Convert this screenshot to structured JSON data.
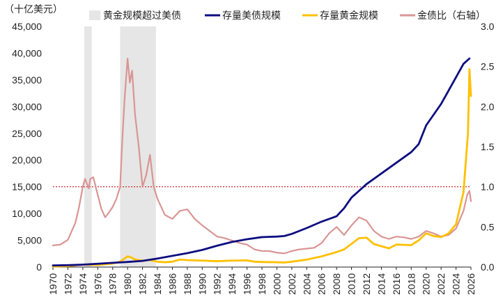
{
  "chart_data": {
    "type": "line",
    "y_left_unit": "（十亿美元）",
    "ylim_left": [
      0,
      45000
    ],
    "ylim_right": [
      0,
      3.0
    ],
    "xlim": [
      1970,
      2026
    ],
    "y_left_ticks": [
      "0",
      "5,000",
      "10,000",
      "15,000",
      "20,000",
      "25,000",
      "30,000",
      "35,000",
      "40,000",
      "45,000"
    ],
    "y_right_ticks": [
      "0.0",
      "0.5",
      "1.0",
      "1.5",
      "2.0",
      "2.5",
      "3.0"
    ],
    "x_ticks": [
      "1970",
      "1972",
      "1974",
      "1976",
      "1978",
      "1980",
      "1982",
      "1984",
      "1986",
      "1988",
      "1990",
      "1992",
      "1994",
      "1996",
      "1998",
      "2000",
      "2002",
      "2004",
      "2006",
      "2008",
      "2010",
      "2012",
      "2014",
      "2016",
      "2018",
      "2020",
      "2022",
      "2024",
      "2026"
    ],
    "reference_line_right": 1.0,
    "legend": {
      "shade_label": "黄金规模超过美债",
      "treasury_label": "存量美债规模",
      "gold_label": "存量黄金规模",
      "ratio_label": "金债比（右轴）"
    },
    "colors": {
      "treasury": "#0d0d80",
      "gold": "#ffc000",
      "ratio": "#d99594",
      "shade": "#e6e6e6",
      "refline": "#c00000"
    },
    "shaded_periods": [
      [
        1974.2,
        1975.2
      ],
      [
        1979.0,
        1983.8
      ]
    ],
    "series": [
      {
        "name": "存量美债规模",
        "axis": "left",
        "points": [
          [
            1970,
            300
          ],
          [
            1972,
            350
          ],
          [
            1974,
            450
          ],
          [
            1976,
            620
          ],
          [
            1978,
            800
          ],
          [
            1980,
            950
          ],
          [
            1982,
            1150
          ],
          [
            1984,
            1600
          ],
          [
            1986,
            2100
          ],
          [
            1988,
            2600
          ],
          [
            1990,
            3200
          ],
          [
            1992,
            4000
          ],
          [
            1994,
            4700
          ],
          [
            1996,
            5200
          ],
          [
            1998,
            5600
          ],
          [
            2000,
            5700
          ],
          [
            2001,
            5800
          ],
          [
            2002,
            6200
          ],
          [
            2004,
            7300
          ],
          [
            2006,
            8500
          ],
          [
            2008,
            9500
          ],
          [
            2009,
            11000
          ],
          [
            2010,
            13000
          ],
          [
            2012,
            15500
          ],
          [
            2014,
            17500
          ],
          [
            2016,
            19500
          ],
          [
            2018,
            21500
          ],
          [
            2019,
            23000
          ],
          [
            2020,
            26500
          ],
          [
            2021,
            28500
          ],
          [
            2022,
            30500
          ],
          [
            2023,
            33000
          ],
          [
            2024,
            35500
          ],
          [
            2025,
            38000
          ],
          [
            2025.8,
            39000
          ]
        ]
      },
      {
        "name": "存量黄金规模",
        "axis": "left",
        "points": [
          [
            1970,
            120
          ],
          [
            1972,
            180
          ],
          [
            1974,
            450
          ],
          [
            1976,
            400
          ],
          [
            1978,
            650
          ],
          [
            1979,
            1000
          ],
          [
            1980,
            2000
          ],
          [
            1980.5,
            1800
          ],
          [
            1981,
            1400
          ],
          [
            1982,
            1200
          ],
          [
            1983,
            1300
          ],
          [
            1984,
            1000
          ],
          [
            1985,
            900
          ],
          [
            1986,
            1000
          ],
          [
            1987,
            1400
          ],
          [
            1988,
            1300
          ],
          [
            1990,
            1200
          ],
          [
            1992,
            1100
          ],
          [
            1994,
            1200
          ],
          [
            1996,
            1250
          ],
          [
            1997,
            1000
          ],
          [
            1998,
            950
          ],
          [
            2000,
            900
          ],
          [
            2001,
            850
          ],
          [
            2002,
            1000
          ],
          [
            2004,
            1400
          ],
          [
            2006,
            2000
          ],
          [
            2008,
            2800
          ],
          [
            2009,
            3300
          ],
          [
            2011,
            5400
          ],
          [
            2012,
            5500
          ],
          [
            2013,
            4300
          ],
          [
            2014,
            3900
          ],
          [
            2015,
            3500
          ],
          [
            2016,
            4200
          ],
          [
            2018,
            4100
          ],
          [
            2019,
            5000
          ],
          [
            2020,
            6300
          ],
          [
            2021,
            5800
          ],
          [
            2022,
            5600
          ],
          [
            2023,
            6300
          ],
          [
            2024,
            8000
          ],
          [
            2025,
            14000
          ],
          [
            2025.6,
            25000
          ],
          [
            2025.8,
            37000
          ],
          [
            2026,
            32000
          ]
        ]
      },
      {
        "name": "金债比（右轴）",
        "axis": "right",
        "points": [
          [
            1970,
            0.27
          ],
          [
            1971,
            0.28
          ],
          [
            1972,
            0.34
          ],
          [
            1973,
            0.55
          ],
          [
            1973.5,
            0.75
          ],
          [
            1974,
            1.0
          ],
          [
            1974.3,
            1.1
          ],
          [
            1974.8,
            0.98
          ],
          [
            1975,
            1.1
          ],
          [
            1975.4,
            1.12
          ],
          [
            1976,
            0.9
          ],
          [
            1976.5,
            0.72
          ],
          [
            1977,
            0.62
          ],
          [
            1977.5,
            0.68
          ],
          [
            1978,
            0.75
          ],
          [
            1978.5,
            0.85
          ],
          [
            1979,
            1.0
          ],
          [
            1979.3,
            1.6
          ],
          [
            1979.6,
            2.1
          ],
          [
            1980,
            2.6
          ],
          [
            1980.3,
            2.3
          ],
          [
            1980.6,
            2.45
          ],
          [
            1981,
            1.9
          ],
          [
            1981.5,
            1.5
          ],
          [
            1982,
            1.0
          ],
          [
            1982.5,
            1.15
          ],
          [
            1983,
            1.4
          ],
          [
            1983.5,
            1.0
          ],
          [
            1984,
            0.85
          ],
          [
            1985,
            0.65
          ],
          [
            1986,
            0.6
          ],
          [
            1987,
            0.7
          ],
          [
            1988,
            0.72
          ],
          [
            1989,
            0.6
          ],
          [
            1990,
            0.52
          ],
          [
            1991,
            0.45
          ],
          [
            1992,
            0.38
          ],
          [
            1993,
            0.36
          ],
          [
            1994,
            0.33
          ],
          [
            1995,
            0.3
          ],
          [
            1996,
            0.28
          ],
          [
            1997,
            0.22
          ],
          [
            1998,
            0.2
          ],
          [
            1999,
            0.2
          ],
          [
            2000,
            0.18
          ],
          [
            2001,
            0.17
          ],
          [
            2002,
            0.2
          ],
          [
            2003,
            0.22
          ],
          [
            2004,
            0.23
          ],
          [
            2005,
            0.24
          ],
          [
            2006,
            0.3
          ],
          [
            2007,
            0.42
          ],
          [
            2008,
            0.5
          ],
          [
            2009,
            0.4
          ],
          [
            2010,
            0.52
          ],
          [
            2011,
            0.62
          ],
          [
            2012,
            0.58
          ],
          [
            2013,
            0.45
          ],
          [
            2014,
            0.38
          ],
          [
            2015,
            0.35
          ],
          [
            2016,
            0.38
          ],
          [
            2017,
            0.37
          ],
          [
            2018,
            0.35
          ],
          [
            2019,
            0.38
          ],
          [
            2020,
            0.45
          ],
          [
            2021,
            0.42
          ],
          [
            2022,
            0.38
          ],
          [
            2023,
            0.4
          ],
          [
            2024,
            0.48
          ],
          [
            2025,
            0.7
          ],
          [
            2025.5,
            0.9
          ],
          [
            2025.8,
            0.95
          ],
          [
            2026,
            0.82
          ]
        ]
      }
    ]
  }
}
